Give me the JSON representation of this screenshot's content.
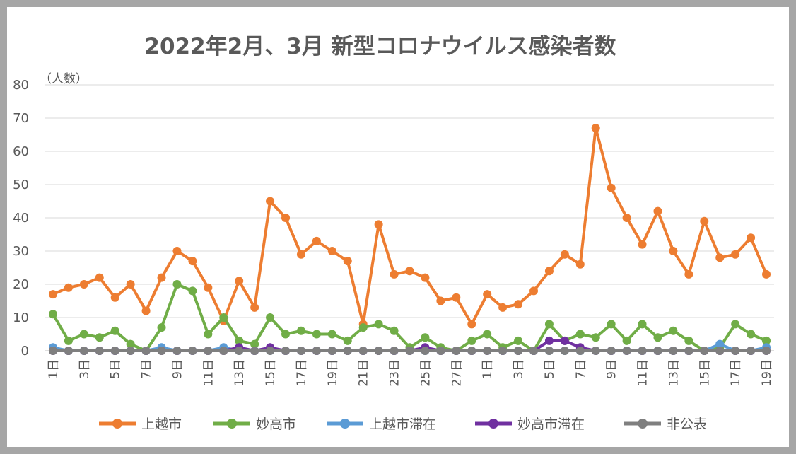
{
  "chart_data": {
    "type": "line",
    "title": "2022年2月、3月 新型コロナウイルス感染者数",
    "ylabel": "（人数）",
    "ylim": [
      0,
      80
    ],
    "yticks": [
      0,
      10,
      20,
      30,
      40,
      50,
      60,
      70,
      80
    ],
    "grid": true,
    "legend_position": "bottom",
    "categories": [
      "1日",
      "2日",
      "3日",
      "4日",
      "5日",
      "6日",
      "7日",
      "8日",
      "9日",
      "10日",
      "11日",
      "12日",
      "13日",
      "14日",
      "15日",
      "16日",
      "17日",
      "18日",
      "19日",
      "20日",
      "21日",
      "22日",
      "23日",
      "24日",
      "25日",
      "26日",
      "27日",
      "28日",
      "1日",
      "2日",
      "3日",
      "4日",
      "5日",
      "6日",
      "7日",
      "8日",
      "9日",
      "10日",
      "11日",
      "12日",
      "13日",
      "14日",
      "15日",
      "16日",
      "17日",
      "18日",
      "19日"
    ],
    "x_tick_labels": [
      "1日",
      "3日",
      "5日",
      "7日",
      "9日",
      "11日",
      "13日",
      "15日",
      "17日",
      "19日",
      "21日",
      "23日",
      "25日",
      "27日",
      "1日",
      "3日",
      "5日",
      "7日",
      "9日",
      "11日",
      "13日",
      "15日",
      "17日",
      "19日"
    ],
    "series": [
      {
        "name": "上越市",
        "color": "#ed7d31",
        "values": [
          17,
          19,
          20,
          22,
          16,
          20,
          12,
          22,
          30,
          27,
          19,
          9,
          21,
          13,
          45,
          40,
          29,
          33,
          30,
          27,
          8,
          38,
          23,
          24,
          22,
          15,
          16,
          8,
          17,
          13,
          14,
          18,
          24,
          29,
          26,
          67,
          49,
          40,
          32,
          42,
          30,
          23,
          39,
          28,
          29,
          34,
          23
        ]
      },
      {
        "name": "妙高市",
        "color": "#70ad47",
        "values": [
          11,
          3,
          5,
          4,
          6,
          2,
          0,
          7,
          20,
          18,
          5,
          10,
          3,
          2,
          10,
          5,
          6,
          5,
          5,
          3,
          7,
          8,
          6,
          1,
          4,
          1,
          0,
          3,
          5,
          1,
          3,
          0,
          8,
          3,
          5,
          4,
          8,
          3,
          8,
          4,
          6,
          3,
          0,
          1,
          8,
          5,
          3
        ]
      },
      {
        "name": "上越市滞在",
        "color": "#5b9bd5",
        "values": [
          1,
          0,
          0,
          0,
          0,
          0,
          0,
          1,
          0,
          0,
          0,
          1,
          0,
          0,
          0,
          0,
          0,
          0,
          0,
          0,
          0,
          0,
          0,
          0,
          0,
          0,
          0,
          0,
          0,
          0,
          0,
          0,
          0,
          0,
          0,
          0,
          0,
          0,
          0,
          0,
          0,
          0,
          0,
          2,
          0,
          0,
          1
        ]
      },
      {
        "name": "妙高市滞在",
        "color": "#7030a0",
        "values": [
          0,
          0,
          0,
          0,
          0,
          0,
          0,
          0,
          0,
          0,
          0,
          0,
          1,
          0,
          1,
          0,
          0,
          0,
          0,
          0,
          0,
          0,
          0,
          0,
          1,
          0,
          0,
          0,
          0,
          0,
          0,
          0,
          3,
          3,
          1,
          0,
          0,
          0,
          0,
          0,
          0,
          0,
          0,
          0,
          0,
          0,
          0
        ]
      },
      {
        "name": "非公表",
        "color": "#7f7f7f",
        "values": [
          0,
          0,
          0,
          0,
          0,
          0,
          0,
          0,
          0,
          0,
          0,
          0,
          0,
          0,
          0,
          0,
          0,
          0,
          0,
          0,
          0,
          0,
          0,
          0,
          0,
          0,
          0,
          0,
          0,
          0,
          0,
          0,
          0,
          0,
          0,
          0,
          0,
          0,
          0,
          0,
          0,
          0,
          0,
          0,
          0,
          0,
          0
        ]
      }
    ]
  }
}
